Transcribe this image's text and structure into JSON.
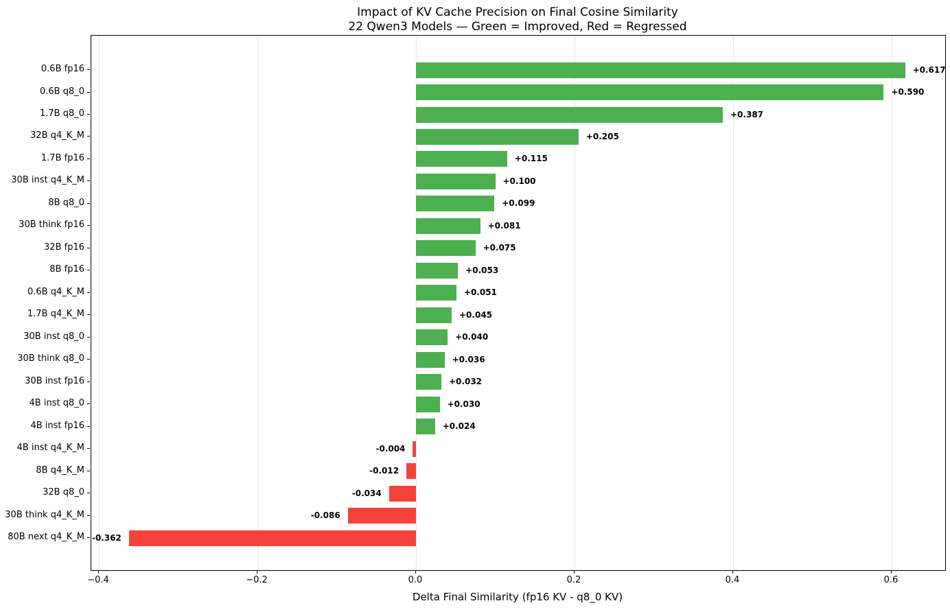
{
  "figure": {
    "title": "Impact of KV Cache Precision on Final Cosine Similarity",
    "subtitle": "22 Qwen3 Models — Green = Improved, Red = Regressed",
    "xlabel": "Delta Final Similarity (fp16 KV - q8_0 KV)"
  },
  "chart_data": {
    "type": "bar",
    "orientation": "horizontal",
    "title": "Impact of KV Cache Precision on Final Cosine Similarity",
    "subtitle": "22 Qwen3 Models — Green = Improved, Red = Regressed",
    "xlabel": "Delta Final Similarity (fp16 KV - q8_0 KV)",
    "ylabel": "",
    "xlim": [
      -0.41,
      0.667
    ],
    "grid": true,
    "legend_position": "none",
    "colors": {
      "improved": "#4caf50",
      "regressed": "#f4433a"
    },
    "x_ticks": [
      {
        "value": -0.4,
        "label": "−0.4"
      },
      {
        "value": -0.2,
        "label": "−0.2"
      },
      {
        "value": 0.0,
        "label": "0.0"
      },
      {
        "value": 0.2,
        "label": "0.2"
      },
      {
        "value": 0.4,
        "label": "0.4"
      },
      {
        "value": 0.6,
        "label": "0.6"
      }
    ],
    "bars": [
      {
        "category": "0.6B fp16",
        "value": 0.617,
        "value_label": "+0.617",
        "status": "improved"
      },
      {
        "category": "0.6B q8_0",
        "value": 0.59,
        "value_label": "+0.590",
        "status": "improved"
      },
      {
        "category": "1.7B q8_0",
        "value": 0.387,
        "value_label": "+0.387",
        "status": "improved"
      },
      {
        "category": "32B q4_K_M",
        "value": 0.205,
        "value_label": "+0.205",
        "status": "improved"
      },
      {
        "category": "1.7B fp16",
        "value": 0.115,
        "value_label": "+0.115",
        "status": "improved"
      },
      {
        "category": "30B inst q4_K_M",
        "value": 0.1,
        "value_label": "+0.100",
        "status": "improved"
      },
      {
        "category": "8B q8_0",
        "value": 0.099,
        "value_label": "+0.099",
        "status": "improved"
      },
      {
        "category": "30B think fp16",
        "value": 0.081,
        "value_label": "+0.081",
        "status": "improved"
      },
      {
        "category": "32B fp16",
        "value": 0.075,
        "value_label": "+0.075",
        "status": "improved"
      },
      {
        "category": "8B fp16",
        "value": 0.053,
        "value_label": "+0.053",
        "status": "improved"
      },
      {
        "category": "0.6B q4_K_M",
        "value": 0.051,
        "value_label": "+0.051",
        "status": "improved"
      },
      {
        "category": "1.7B q4_K_M",
        "value": 0.045,
        "value_label": "+0.045",
        "status": "improved"
      },
      {
        "category": "30B inst q8_0",
        "value": 0.04,
        "value_label": "+0.040",
        "status": "improved"
      },
      {
        "category": "30B think q8_0",
        "value": 0.036,
        "value_label": "+0.036",
        "status": "improved"
      },
      {
        "category": "30B inst fp16",
        "value": 0.032,
        "value_label": "+0.032",
        "status": "improved"
      },
      {
        "category": "4B inst q8_0",
        "value": 0.03,
        "value_label": "+0.030",
        "status": "improved"
      },
      {
        "category": "4B inst fp16",
        "value": 0.024,
        "value_label": "+0.024",
        "status": "improved"
      },
      {
        "category": "4B inst q4_K_M",
        "value": -0.004,
        "value_label": "-0.004",
        "status": "regressed"
      },
      {
        "category": "8B q4_K_M",
        "value": -0.012,
        "value_label": "-0.012",
        "status": "regressed"
      },
      {
        "category": "32B q8_0",
        "value": -0.034,
        "value_label": "-0.034",
        "status": "regressed"
      },
      {
        "category": "30B think q4_K_M",
        "value": -0.086,
        "value_label": "-0.086",
        "status": "regressed"
      },
      {
        "category": "80B next q4_K_M",
        "value": -0.362,
        "value_label": "-0.362",
        "status": "regressed"
      }
    ]
  }
}
